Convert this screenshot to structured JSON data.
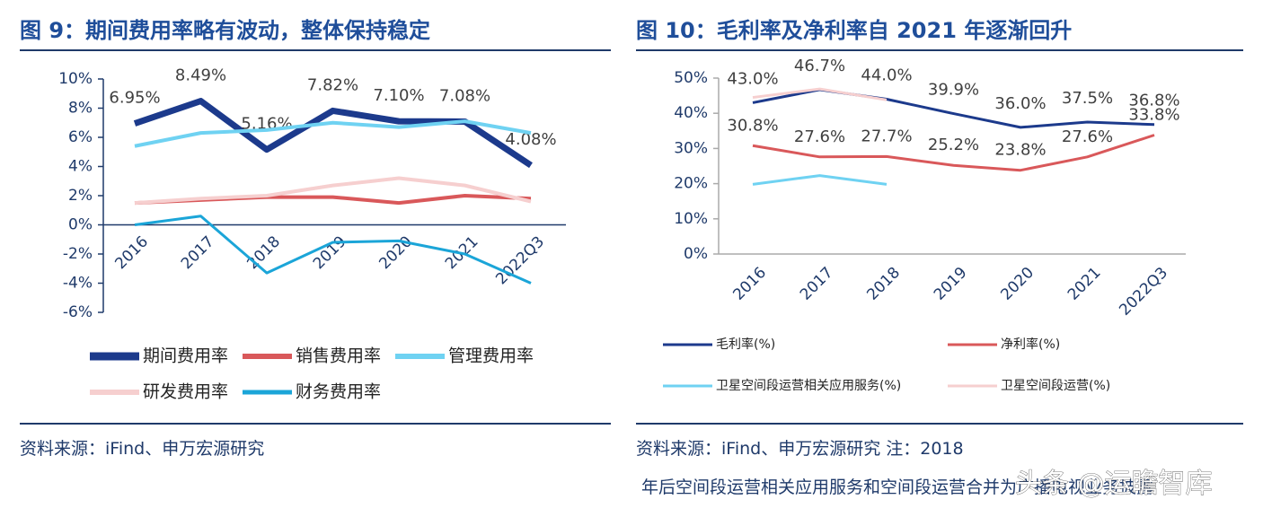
{
  "chart_data": [
    {
      "type": "line",
      "title": "图 9：期间费用率略有波动，整体保持稳定",
      "categories": [
        "2016",
        "2017",
        "2018",
        "2019",
        "2020",
        "2021",
        "2022Q3"
      ],
      "ylim": [
        -6,
        10
      ],
      "yticks": [
        {
          "value": -6,
          "label": "-6%"
        },
        {
          "value": -4,
          "label": "-4%"
        },
        {
          "value": -2,
          "label": "-2%"
        },
        {
          "value": 0,
          "label": "0%"
        },
        {
          "value": 2,
          "label": "2%"
        },
        {
          "value": 4,
          "label": "4%"
        },
        {
          "value": 6,
          "label": "6%"
        },
        {
          "value": 8,
          "label": "8%"
        },
        {
          "value": 10,
          "label": "10%"
        }
      ],
      "series": [
        {
          "name": "期间费用率",
          "color": "#1c3a8c",
          "values": [
            6.95,
            8.49,
            5.16,
            7.82,
            7.1,
            7.08,
            4.08
          ],
          "value_labels": [
            "6.95%",
            "8.49%",
            "5.16%",
            "7.82%",
            "7.10%",
            "7.08%",
            "4.08%"
          ]
        },
        {
          "name": "销售费用率",
          "color": "#d9585a",
          "values": [
            1.5,
            1.7,
            1.9,
            1.9,
            1.5,
            2.0,
            1.8
          ]
        },
        {
          "name": "管理费用率",
          "color": "#6fd2f2",
          "values": [
            5.4,
            6.3,
            6.5,
            7.0,
            6.7,
            7.1,
            6.3
          ]
        },
        {
          "name": "研发费用率",
          "color": "#f6cfcf",
          "values": [
            1.5,
            1.8,
            2.0,
            2.7,
            3.2,
            2.7,
            1.6
          ]
        },
        {
          "name": "财务费用率",
          "color": "#1ba5d8",
          "values": [
            0.0,
            0.6,
            -3.3,
            -1.2,
            -1.1,
            -2.0,
            -4.0
          ]
        }
      ],
      "source": "资料来源：iFind、申万宏源研究"
    },
    {
      "type": "line",
      "title": "图 10：毛利率及净利率自 2021 年逐渐回升",
      "categories": [
        "2016",
        "2017",
        "2018",
        "2019",
        "2020",
        "2021",
        "2022Q3"
      ],
      "ylim": [
        0,
        50
      ],
      "yticks": [
        {
          "value": 0,
          "label": "0%"
        },
        {
          "value": 10,
          "label": "10%"
        },
        {
          "value": 20,
          "label": "20%"
        },
        {
          "value": 30,
          "label": "30%"
        },
        {
          "value": 40,
          "label": "40%"
        },
        {
          "value": 50,
          "label": "50%"
        }
      ],
      "series": [
        {
          "name": "毛利率(%)",
          "color": "#1c3a8c",
          "values": [
            43.0,
            46.7,
            44.0,
            39.9,
            36.0,
            37.5,
            36.8
          ],
          "value_labels": [
            "43.0%",
            "46.7%",
            "44.0%",
            "39.9%",
            "36.0%",
            "37.5%",
            "36.8%"
          ]
        },
        {
          "name": "净利率(%)",
          "color": "#d9585a",
          "values": [
            30.8,
            27.6,
            27.7,
            25.2,
            23.8,
            27.6,
            33.8
          ],
          "value_labels": [
            "30.8%",
            "27.6%",
            "27.7%",
            "25.2%",
            "23.8%",
            "27.6%",
            "33.8%"
          ]
        },
        {
          "name": "卫星空间段运营相关应用服务(%)",
          "color": "#6fd2f2",
          "values": [
            19.8,
            22.3,
            19.8,
            null,
            null,
            null,
            null
          ]
        },
        {
          "name": "卫星空间段运营(%)",
          "color": "#f6cfcf",
          "values": [
            44.5,
            46.9,
            43.8,
            null,
            null,
            null,
            null
          ]
        }
      ],
      "source": "资料来源：iFind、申万宏源研究  注：2018 年后空间段运营相关应用服务和空间段运营合并为广播电视业务披露"
    }
  ],
  "watermark": "头条 @运瞻智库"
}
